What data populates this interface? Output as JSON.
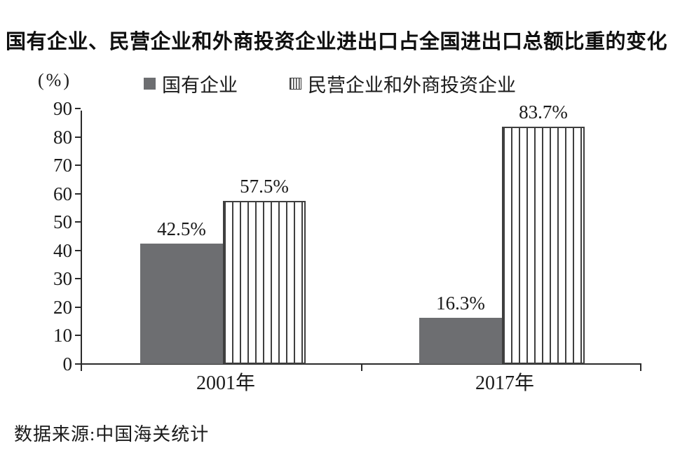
{
  "title": "国有企业、民营企业和外商投资企业进出口占全国进出口总额比重的变化",
  "footer": {
    "source": "数据来源:中国海关统计"
  },
  "legend": {
    "items": [
      {
        "label": "国有企业",
        "swatch": "solid-gray-square"
      },
      {
        "label": "民营企业和外商投资企业",
        "swatch": "vertical-striped-square"
      }
    ]
  },
  "colors": {
    "solid_bar": "#6d6e71",
    "stripe_line": "#3f3f3f",
    "axis": "#2a2a2a",
    "text": "#1a1a1a",
    "background": "#ffffff"
  },
  "chart_data": {
    "type": "bar",
    "categories": [
      "2001年",
      "2017年"
    ],
    "series": [
      {
        "name": "国有企业",
        "style": "solid",
        "values": [
          42.5,
          16.3
        ],
        "labels": [
          "42.5%",
          "16.3%"
        ]
      },
      {
        "name": "民营企业和外商投资企业",
        "style": "striped",
        "values": [
          57.5,
          83.7
        ],
        "labels": [
          "57.5%",
          "83.7%"
        ]
      }
    ],
    "ylabel": "(%)",
    "ylim": [
      0,
      90
    ],
    "ytick_step": 10,
    "ytick_labels": [
      "0",
      "10",
      "20",
      "30",
      "40",
      "50",
      "60",
      "70",
      "80",
      "90"
    ],
    "grid": false,
    "legend_position": "top",
    "value_labels_shown": true
  }
}
